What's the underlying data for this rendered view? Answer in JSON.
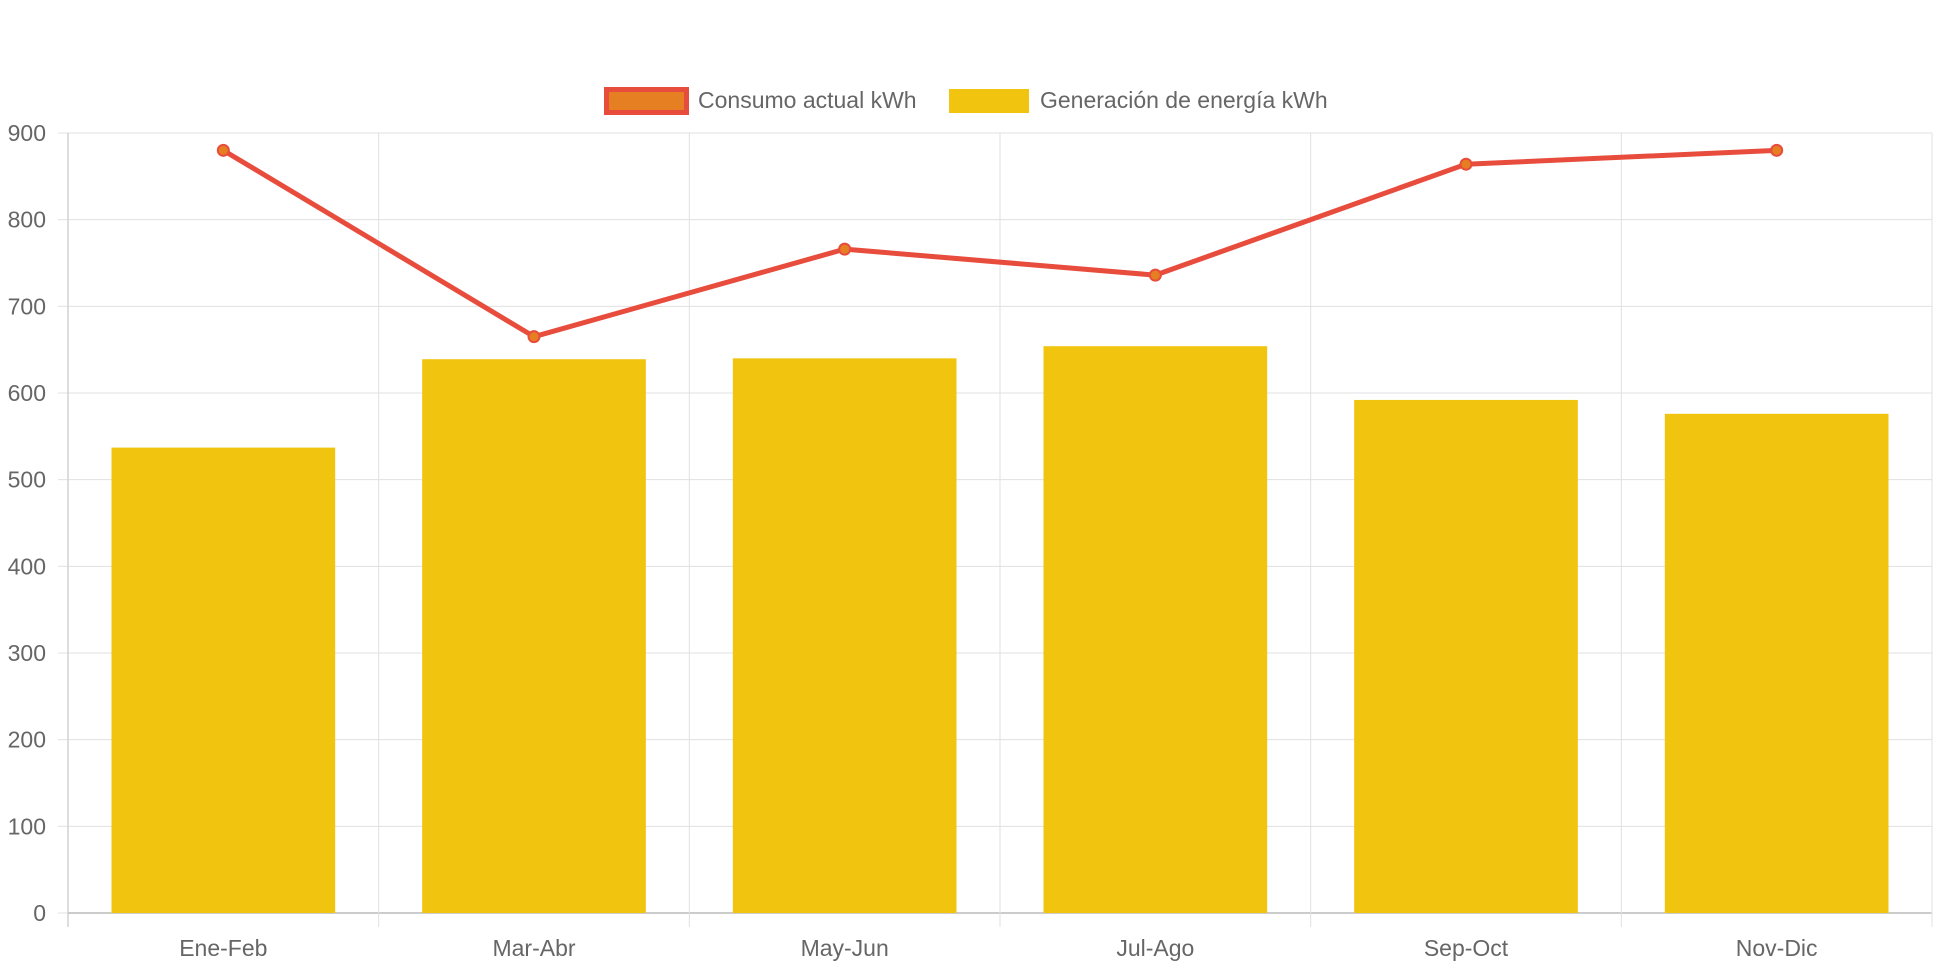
{
  "chart_data": {
    "type": "bar",
    "categories": [
      "Ene-Feb",
      "Mar-Abr",
      "May-Jun",
      "Jul-Ago",
      "Sep-Oct",
      "Nov-Dic"
    ],
    "series": [
      {
        "name": "Consumo actual kWh",
        "type": "line",
        "values": [
          880,
          665,
          766,
          736,
          864,
          880
        ],
        "color": "#e74c3c",
        "point_color": "#e67e22"
      },
      {
        "name": "Generación de energía kWh",
        "type": "bar",
        "values": [
          537,
          639,
          640,
          654,
          592,
          576
        ],
        "color": "#f1c40f"
      }
    ],
    "ylim": [
      0,
      900
    ],
    "yticks": [
      0,
      100,
      200,
      300,
      400,
      500,
      600,
      700,
      800,
      900
    ],
    "grid": true,
    "legend": "top-center"
  }
}
